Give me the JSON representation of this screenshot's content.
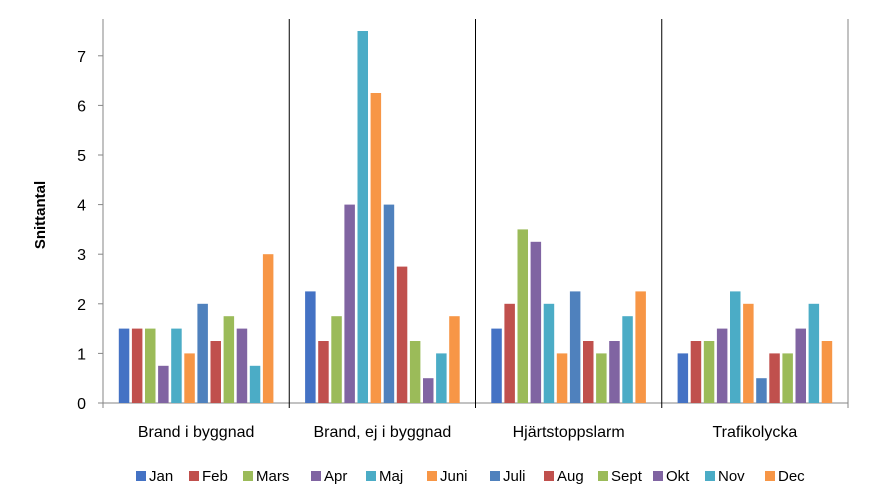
{
  "chart_data": {
    "type": "bar",
    "title": "",
    "xlabel": "",
    "ylabel": "Snittantal",
    "ylim": [
      0,
      7.5
    ],
    "yticks": [
      0,
      1,
      2,
      3,
      4,
      5,
      6,
      7
    ],
    "grid": false,
    "legend_position": "bottom",
    "categories": [
      "Brand i byggnad",
      "Brand, ej i byggnad",
      "Hjärtstoppslarm",
      "Trafikolycka"
    ],
    "series": [
      {
        "name": "Jan",
        "color": "#4472C4",
        "values": [
          1.5,
          2.25,
          1.5,
          1.0
        ]
      },
      {
        "name": "Feb",
        "color": "#C0504D",
        "values": [
          1.5,
          1.25,
          2.0,
          1.25
        ]
      },
      {
        "name": "Mars",
        "color": "#9BBB59",
        "values": [
          1.5,
          1.75,
          3.5,
          1.25
        ]
      },
      {
        "name": "Apr",
        "color": "#8064A2",
        "values": [
          0.75,
          4.0,
          3.25,
          1.5
        ]
      },
      {
        "name": "Maj",
        "color": "#4BACC6",
        "values": [
          1.5,
          7.5,
          2.0,
          2.25
        ]
      },
      {
        "name": "Juni",
        "color": "#F79646",
        "values": [
          1.0,
          6.25,
          1.0,
          2.0
        ]
      },
      {
        "name": "Juli",
        "color": "#4F81BD",
        "values": [
          2.0,
          4.0,
          2.25,
          0.5
        ]
      },
      {
        "name": "Aug",
        "color": "#C0504D",
        "values": [
          1.25,
          2.75,
          1.25,
          1.0
        ]
      },
      {
        "name": "Sept",
        "color": "#9BBB59",
        "values": [
          1.75,
          1.25,
          1.0,
          1.0
        ]
      },
      {
        "name": "Okt",
        "color": "#8064A2",
        "values": [
          1.5,
          0.5,
          1.25,
          1.5
        ]
      },
      {
        "name": "Nov",
        "color": "#4BACC6",
        "values": [
          0.75,
          1.0,
          1.75,
          2.0
        ]
      },
      {
        "name": "Dec",
        "color": "#F79646",
        "values": [
          3.0,
          1.75,
          2.25,
          1.25
        ]
      }
    ]
  }
}
